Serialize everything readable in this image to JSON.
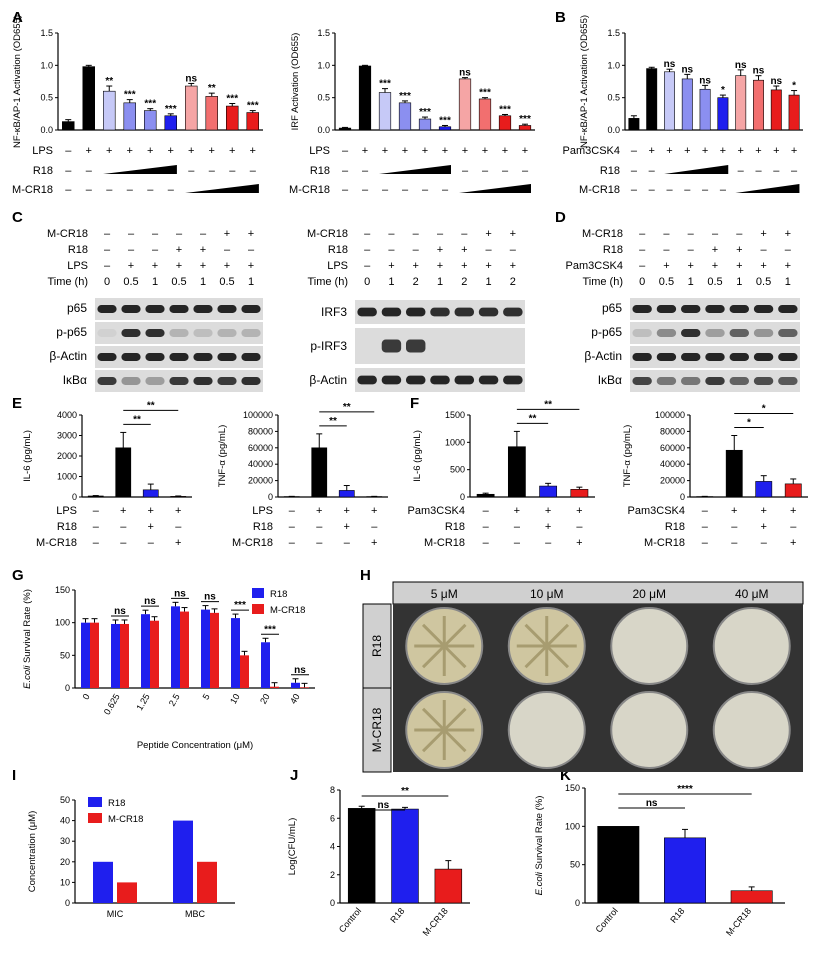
{
  "colors": {
    "black": "#000000",
    "light_blue": "#c6c9f7",
    "mid_blue": "#8b8ff0",
    "blue": "#1f1fee",
    "light_red": "#f5a5a5",
    "mid_red": "#f26f6f",
    "red": "#e81c1c"
  },
  "panels": {
    "A": "A",
    "B": "B",
    "C": "C",
    "D": "D",
    "E": "E",
    "F": "F",
    "G": "G",
    "H": "H",
    "I": "I",
    "J": "J",
    "K": "K"
  },
  "rows": {
    "lps": "LPS",
    "r18": "R18",
    "mcr18": "M-CR18",
    "pam": "Pam3CSK4",
    "time": "Time (h)",
    "plus": "+",
    "minus": "–"
  },
  "wb": {
    "p65": "p65",
    "pp65": "p-p65",
    "actin": "β-Actin",
    "ikba": "IκBα",
    "irf3": "IRF3",
    "pirf3": "p-IRF3",
    "times_c1": [
      "0",
      "0.5",
      "1",
      "0.5",
      "1",
      "0.5",
      "1"
    ],
    "times_c2": [
      "0",
      "1",
      "2",
      "1",
      "2",
      "1",
      "2"
    ],
    "times_d": [
      "0",
      "0.5",
      "1",
      "0.5",
      "1",
      "0.5",
      "1"
    ]
  },
  "plate": {
    "conc": [
      "5 μM",
      "10 μM",
      "20 μM",
      "40 μM"
    ],
    "rows": [
      "R18",
      "M-CR18"
    ]
  },
  "chart_data": [
    {
      "id": "A1",
      "type": "bar",
      "ylabel": "NF-κB/AP-1 Activation (OD655)",
      "ylim": [
        0,
        1.5
      ],
      "yticks": [
        "0.0",
        "0.5",
        "1.0",
        "1.5"
      ],
      "values": [
        0.13,
        0.98,
        0.6,
        0.42,
        0.3,
        0.22,
        0.68,
        0.52,
        0.37,
        0.27
      ],
      "errors": [
        0.03,
        0.02,
        0.08,
        0.05,
        0.03,
        0.03,
        0.04,
        0.05,
        0.04,
        0.03
      ],
      "sig": [
        "",
        "",
        "**",
        "***",
        "***",
        "***",
        "ns",
        "**",
        "***",
        "***"
      ]
    },
    {
      "id": "A2",
      "type": "bar",
      "ylabel": "IRF Activation (OD655)",
      "ylim": [
        0,
        1.5
      ],
      "yticks": [
        "0.0",
        "0.5",
        "1.0",
        "1.5"
      ],
      "values": [
        0.03,
        0.99,
        0.58,
        0.42,
        0.17,
        0.05,
        0.79,
        0.48,
        0.22,
        0.07
      ],
      "errors": [
        0.01,
        0.01,
        0.06,
        0.03,
        0.03,
        0.02,
        0.02,
        0.02,
        0.02,
        0.02
      ],
      "sig": [
        "",
        "",
        "***",
        "***",
        "***",
        "***",
        "ns",
        "***",
        "***",
        "***"
      ]
    },
    {
      "id": "B",
      "type": "bar",
      "ylabel": "NF-κB/AP-1 Activation (OD655)",
      "ylim": [
        0,
        1.5
      ],
      "yticks": [
        "0.0",
        "0.5",
        "1.0",
        "1.5"
      ],
      "values": [
        0.18,
        0.95,
        0.9,
        0.79,
        0.63,
        0.5,
        0.84,
        0.77,
        0.62,
        0.54
      ],
      "errors": [
        0.04,
        0.02,
        0.04,
        0.07,
        0.06,
        0.04,
        0.09,
        0.07,
        0.06,
        0.07
      ],
      "sig": [
        "",
        "",
        "ns",
        "ns",
        "ns",
        "*",
        "ns",
        "ns",
        "ns",
        "*"
      ]
    },
    {
      "id": "E1",
      "type": "bar",
      "ylabel": "IL-6 (pg/mL)",
      "ylim": [
        0,
        4000
      ],
      "yticks": [
        "0",
        "1000",
        "2000",
        "3000",
        "4000"
      ],
      "values": [
        50,
        2400,
        350,
        30
      ],
      "errors": [
        20,
        750,
        280,
        20
      ],
      "sig_pairs": [
        "**",
        "**"
      ]
    },
    {
      "id": "E2",
      "type": "bar",
      "ylabel": "TNF-α (pg/mL)",
      "ylim": [
        0,
        100000
      ],
      "yticks": [
        "0",
        "20000",
        "40000",
        "60000",
        "80000",
        "100000"
      ],
      "values": [
        500,
        60000,
        8000,
        500
      ],
      "errors": [
        300,
        17000,
        6000,
        300
      ],
      "sig_pairs": [
        "**",
        "**"
      ]
    },
    {
      "id": "F1",
      "type": "bar",
      "ylabel": "IL-6 (pg/mL)",
      "ylim": [
        0,
        1500
      ],
      "yticks": [
        "0",
        "500",
        "1000",
        "1500"
      ],
      "values": [
        50,
        920,
        200,
        140
      ],
      "errors": [
        20,
        280,
        50,
        40
      ],
      "sig_pairs": [
        "**",
        "**"
      ]
    },
    {
      "id": "F2",
      "type": "bar",
      "ylabel": "TNF-α (pg/mL)",
      "ylim": [
        0,
        100000
      ],
      "yticks": [
        "0",
        "20000",
        "40000",
        "60000",
        "80000",
        "100000"
      ],
      "values": [
        500,
        57000,
        19000,
        16000
      ],
      "errors": [
        300,
        18000,
        7000,
        6000
      ],
      "sig_pairs": [
        "*",
        "*"
      ]
    },
    {
      "id": "G",
      "type": "bar",
      "ylabel": "E.coli Survival Rate (%)",
      "xlabel": "Peptide Concentration (μM)",
      "ylim": [
        0,
        150
      ],
      "yticks": [
        "0",
        "50",
        "100",
        "150"
      ],
      "categories": [
        "0",
        "0.625",
        "1.25",
        "2.5",
        "5",
        "10",
        "20",
        "40"
      ],
      "series": [
        {
          "name": "R18",
          "values": [
            100,
            98,
            113,
            125,
            120,
            107,
            70,
            8
          ]
        },
        {
          "name": "M-CR18",
          "values": [
            100,
            98,
            103,
            117,
            115,
            50,
            2,
            1
          ]
        }
      ],
      "sig": [
        "",
        "ns",
        "ns",
        "ns",
        "ns",
        "***",
        "***",
        "ns"
      ]
    },
    {
      "id": "I",
      "type": "bar",
      "ylabel": "Concentration (μM)",
      "ylim": [
        0,
        50
      ],
      "yticks": [
        "0",
        "10",
        "20",
        "30",
        "40",
        "50"
      ],
      "categories": [
        "MIC",
        "MBC"
      ],
      "series": [
        {
          "name": "R18",
          "values": [
            20,
            40
          ]
        },
        {
          "name": "M-CR18",
          "values": [
            10,
            20
          ]
        }
      ]
    },
    {
      "id": "J",
      "type": "bar",
      "ylabel": "Log(CFU/mL)",
      "ylim": [
        0,
        8
      ],
      "yticks": [
        "0",
        "2",
        "4",
        "6",
        "8"
      ],
      "categories": [
        "Control",
        "R18",
        "M-CR18"
      ],
      "values": [
        6.7,
        6.65,
        2.4
      ],
      "errors": [
        0.15,
        0.12,
        0.6
      ],
      "sig_pairs": [
        "ns",
        "**"
      ]
    },
    {
      "id": "K",
      "type": "bar",
      "ylabel": "E.coli Survival Rate (%)",
      "ylim": [
        0,
        150
      ],
      "yticks": [
        "0",
        "50",
        "100",
        "150"
      ],
      "categories": [
        "Control",
        "R18",
        "M-CR18"
      ],
      "values": [
        100,
        85,
        16
      ],
      "errors": [
        0,
        11,
        5
      ],
      "sig_pairs": [
        "ns",
        "****"
      ]
    }
  ]
}
